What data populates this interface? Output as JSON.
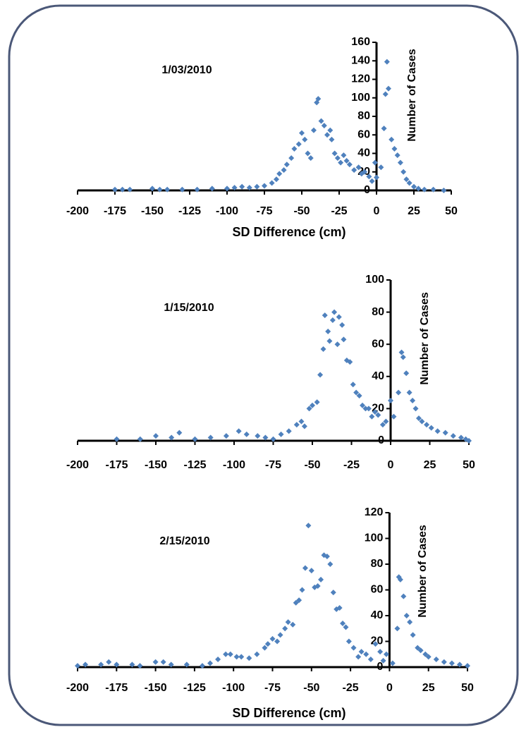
{
  "chart_data": [
    {
      "type": "scatter",
      "title": "1/03/2010",
      "x_label": "SD Difference (cm)",
      "y_label": "Number of Cases",
      "color": "#4f81bd",
      "x": [
        -175,
        -170,
        -165,
        -150,
        -145,
        -140,
        -130,
        -120,
        -110,
        -100,
        -95,
        -90,
        -85,
        -80,
        -75,
        -70,
        -67,
        -65,
        -62,
        -60,
        -57,
        -55,
        -52,
        -50,
        -48,
        -46,
        -44,
        -42,
        -40,
        -39,
        -37,
        -35,
        -33,
        -31,
        -30,
        -28,
        -26,
        -24,
        -22,
        -20,
        -18,
        -15,
        -12,
        -10,
        -8,
        -5,
        -3,
        -1,
        0,
        3,
        5,
        6,
        7,
        8,
        10,
        12,
        14,
        16,
        18,
        20,
        22,
        25,
        28,
        32,
        38,
        45
      ],
      "y": [
        1,
        1,
        1,
        2,
        1,
        1,
        1,
        1,
        2,
        2,
        3,
        4,
        3,
        4,
        5,
        8,
        12,
        18,
        22,
        28,
        35,
        45,
        50,
        62,
        55,
        40,
        35,
        65,
        95,
        99,
        75,
        70,
        60,
        65,
        55,
        40,
        35,
        30,
        38,
        32,
        28,
        22,
        25,
        18,
        20,
        15,
        10,
        30,
        14,
        25,
        67,
        104,
        139,
        110,
        55,
        45,
        38,
        30,
        20,
        12,
        8,
        4,
        2,
        1,
        1,
        0
      ],
      "xlim": [
        -200,
        50
      ],
      "xticks": [
        -200,
        -175,
        -150,
        -125,
        -100,
        -75,
        -50,
        -25,
        0,
        25,
        50
      ],
      "ylim": [
        0,
        160
      ],
      "yticks": [
        0,
        20,
        40,
        60,
        80,
        100,
        120,
        140,
        160
      ]
    },
    {
      "type": "scatter",
      "title": "1/15/2010",
      "y_label": "Number of Cases",
      "color": "#4f81bd",
      "x": [
        -175,
        -160,
        -150,
        -140,
        -135,
        -125,
        -115,
        -105,
        -97,
        -92,
        -85,
        -80,
        -75,
        -70,
        -65,
        -60,
        -57,
        -55,
        -52,
        -50,
        -47,
        -45,
        -43,
        -42,
        -40,
        -39,
        -37,
        -36,
        -34,
        -33,
        -31,
        -30,
        -28,
        -26,
        -24,
        -22,
        -20,
        -18,
        -16,
        -14,
        -12,
        -10,
        -8,
        -5,
        -3,
        0,
        2,
        5,
        7,
        8,
        10,
        12,
        14,
        16,
        18,
        20,
        23,
        26,
        30,
        35,
        40,
        45,
        48,
        50
      ],
      "y": [
        1,
        1,
        3,
        2,
        5,
        1,
        2,
        3,
        6,
        4,
        3,
        2,
        1,
        4,
        6,
        10,
        12,
        9,
        20,
        22,
        24,
        41,
        57,
        78,
        68,
        62,
        75,
        80,
        60,
        77,
        72,
        63,
        50,
        49,
        35,
        30,
        28,
        22,
        20,
        20,
        15,
        18,
        16,
        10,
        12,
        25,
        15,
        30,
        55,
        52,
        42,
        30,
        25,
        20,
        14,
        12,
        10,
        8,
        6,
        5,
        3,
        2,
        1,
        0
      ],
      "xlim": [
        -200,
        50
      ],
      "xticks": [
        -200,
        -175,
        -150,
        -125,
        -100,
        -75,
        -50,
        -25,
        0,
        25,
        50
      ],
      "ylim": [
        0,
        100
      ],
      "yticks": [
        0,
        20,
        40,
        60,
        80,
        100
      ]
    },
    {
      "type": "scatter",
      "title": "2/15/2010",
      "x_label": "SD Difference (cm)",
      "y_label": "Number of Cases",
      "color": "#4f81bd",
      "x": [
        -200,
        -195,
        -185,
        -180,
        -175,
        -165,
        -160,
        -150,
        -145,
        -140,
        -130,
        -120,
        -115,
        -110,
        -105,
        -102,
        -98,
        -95,
        -90,
        -85,
        -80,
        -78,
        -75,
        -72,
        -70,
        -67,
        -65,
        -62,
        -60,
        -58,
        -56,
        -54,
        -52,
        -50,
        -48,
        -46,
        -44,
        -42,
        -40,
        -38,
        -36,
        -34,
        -32,
        -30,
        -28,
        -26,
        -23,
        -20,
        -18,
        -15,
        -12,
        -9,
        -6,
        -4,
        -2,
        2,
        5,
        6,
        7,
        9,
        11,
        13,
        15,
        18,
        20,
        23,
        25,
        30,
        35,
        40,
        45,
        50
      ],
      "y": [
        1,
        2,
        2,
        4,
        2,
        2,
        1,
        4,
        4,
        2,
        2,
        1,
        3,
        6,
        10,
        10,
        8,
        8,
        7,
        10,
        15,
        18,
        22,
        20,
        25,
        30,
        35,
        33,
        50,
        52,
        60,
        77,
        110,
        75,
        62,
        63,
        68,
        87,
        86,
        80,
        58,
        45,
        46,
        34,
        31,
        20,
        15,
        8,
        12,
        10,
        6,
        18,
        12,
        5,
        10,
        3,
        30,
        70,
        68,
        55,
        40,
        35,
        25,
        15,
        13,
        10,
        8,
        6,
        4,
        3,
        2,
        1
      ],
      "xlim": [
        -200,
        50
      ],
      "xticks": [
        -200,
        -175,
        -150,
        -125,
        -100,
        -75,
        -50,
        -25,
        0,
        25,
        50
      ],
      "ylim": [
        0,
        120
      ],
      "yticks": [
        0,
        20,
        40,
        60,
        80,
        100,
        120
      ]
    }
  ]
}
